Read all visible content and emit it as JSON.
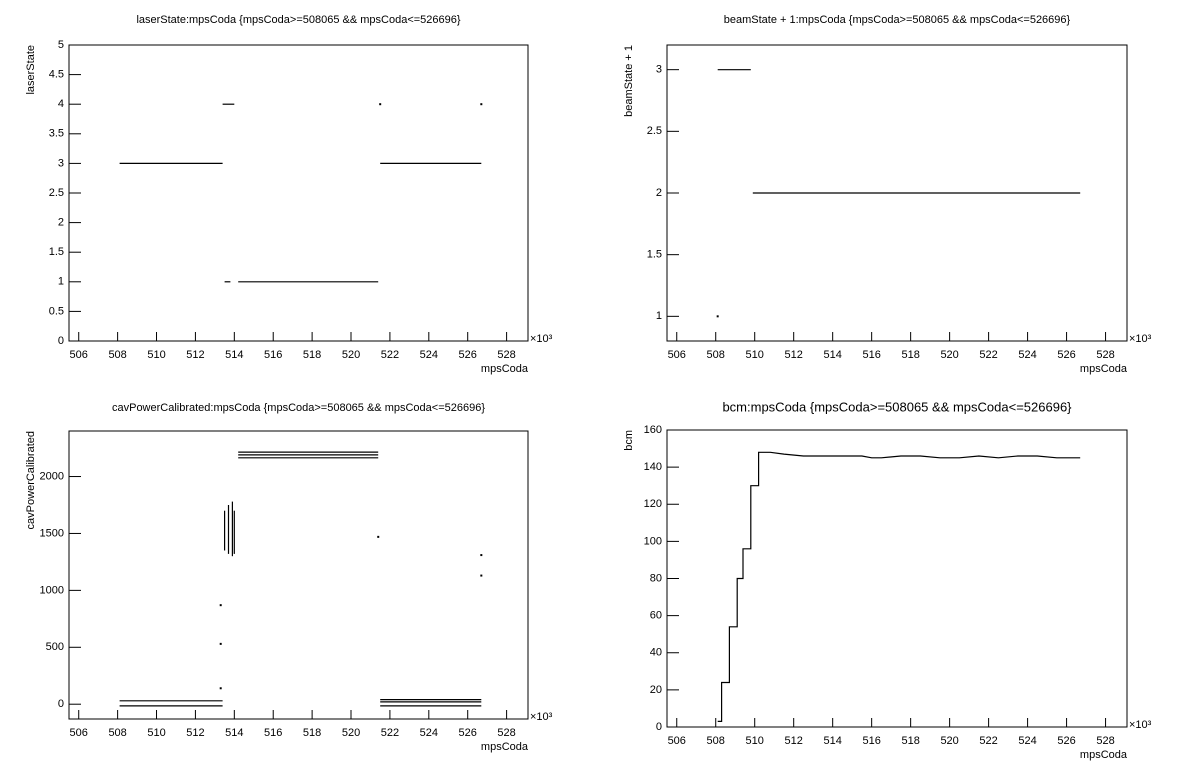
{
  "chart_data": [
    {
      "type": "scatter",
      "title": "laserState:mpsCoda {mpsCoda>=508065 && mpsCoda<=526696}",
      "x_label": "mpsCoda",
      "y_label": "laserState",
      "x_multiplier": "×10³",
      "color": "#000000",
      "xlim": [
        505.5,
        529.1
      ],
      "xticks": [
        506,
        508,
        510,
        512,
        514,
        516,
        518,
        520,
        522,
        524,
        526,
        528
      ],
      "ylim": [
        0,
        5
      ],
      "yticks": [
        0,
        0.5,
        1,
        1.5,
        2,
        2.5,
        3,
        3.5,
        4,
        4.5,
        5
      ],
      "x": [
        508.1,
        513.4,
        513.4,
        513.4,
        514.0,
        514.0,
        513.5,
        513.8,
        513.8,
        514.2,
        521.4,
        521.4,
        521.5,
        526.7,
        526.7,
        521.5,
        521.5,
        526.7
      ],
      "values": [
        3,
        3,
        null,
        4,
        4,
        null,
        1,
        1,
        null,
        1,
        1,
        null,
        3,
        3,
        null,
        4,
        null,
        4
      ]
    },
    {
      "type": "scatter",
      "title": "beamState + 1:mpsCoda {mpsCoda>=508065 && mpsCoda<=526696}",
      "x_label": "mpsCoda",
      "y_label": "beamState + 1",
      "x_multiplier": "×10³",
      "color": "#000000",
      "xlim": [
        505.5,
        529.1
      ],
      "xticks": [
        506,
        508,
        510,
        512,
        514,
        516,
        518,
        520,
        522,
        524,
        526,
        528
      ],
      "ylim": [
        0.8,
        3.2
      ],
      "yticks": [
        1,
        1.5,
        2,
        2.5,
        3
      ],
      "x": [
        508.1,
        509.8,
        509.8,
        508.1,
        508.1,
        509.9,
        526.7
      ],
      "values": [
        3,
        3,
        null,
        1,
        null,
        2,
        2
      ]
    },
    {
      "type": "scatter",
      "title": "cavPowerCalibrated:mpsCoda {mpsCoda>=508065 && mpsCoda<=526696}",
      "x_label": "mpsCoda",
      "y_label": "cavPowerCalibrated",
      "x_multiplier": "×10³",
      "color": "#000000",
      "xlim": [
        505.5,
        529.1
      ],
      "xticks": [
        506,
        508,
        510,
        512,
        514,
        516,
        518,
        520,
        522,
        524,
        526,
        528
      ],
      "ylim": [
        -130,
        2400
      ],
      "yticks": [
        0,
        500,
        1000,
        1500,
        2000
      ],
      "x": [
        508.1,
        513.4,
        513.4,
        508.1,
        513.4,
        513.4,
        513.5,
        513.5,
        513.5,
        513.7,
        513.7,
        513.7,
        513.9,
        513.9,
        513.9,
        514.0,
        514.0,
        514.0,
        513.3,
        513.3,
        513.3,
        513.3,
        513.3,
        513.3,
        514.2,
        521.4,
        521.4,
        514.2,
        521.4,
        521.4,
        514.2,
        521.4,
        521.4,
        521.4,
        521.4,
        521.5,
        526.7,
        526.7,
        521.5,
        526.7,
        526.7,
        521.5,
        526.7,
        526.7,
        526.7,
        526.7,
        526.7
      ],
      "values": [
        30,
        30,
        null,
        -15,
        -15,
        null,
        1350,
        1700,
        null,
        1320,
        1750,
        null,
        1300,
        1780,
        null,
        1320,
        1700,
        null,
        870,
        null,
        530,
        null,
        140,
        null,
        2215,
        2215,
        null,
        2190,
        2190,
        null,
        2165,
        2165,
        null,
        1470,
        null,
        40,
        40,
        null,
        20,
        20,
        null,
        -15,
        -15,
        null,
        1310,
        null,
        1130
      ]
    },
    {
      "type": "line",
      "title": "bcm:mpsCoda {mpsCoda>=508065 && mpsCoda<=526696}",
      "x_label": "mpsCoda",
      "y_label": "bcm",
      "x_multiplier": "×10³",
      "color": "#000000",
      "xlim": [
        505.5,
        529.1
      ],
      "xticks": [
        506,
        508,
        510,
        512,
        514,
        516,
        518,
        520,
        522,
        524,
        526,
        528
      ],
      "ylim": [
        0,
        160
      ],
      "yticks": [
        0,
        20,
        40,
        60,
        80,
        100,
        120,
        140,
        160
      ],
      "x": [
        508.1,
        508.3,
        508.3,
        508.7,
        508.7,
        509.1,
        509.1,
        509.4,
        509.4,
        509.8,
        509.8,
        510.2,
        510.2,
        510.8,
        511.5,
        512.5,
        513.5,
        514.5,
        515.5,
        516.0,
        516.5,
        517.5,
        518.5,
        519.5,
        520.5,
        521.5,
        522.5,
        523.5,
        524.5,
        525.5,
        526.7
      ],
      "values": [
        3,
        3,
        24,
        24,
        54,
        54,
        80,
        80,
        96,
        96,
        130,
        130,
        148,
        148,
        147,
        146,
        146,
        146,
        146,
        145,
        145,
        146,
        146,
        145,
        145,
        146,
        145,
        146,
        146,
        145,
        145
      ]
    }
  ]
}
